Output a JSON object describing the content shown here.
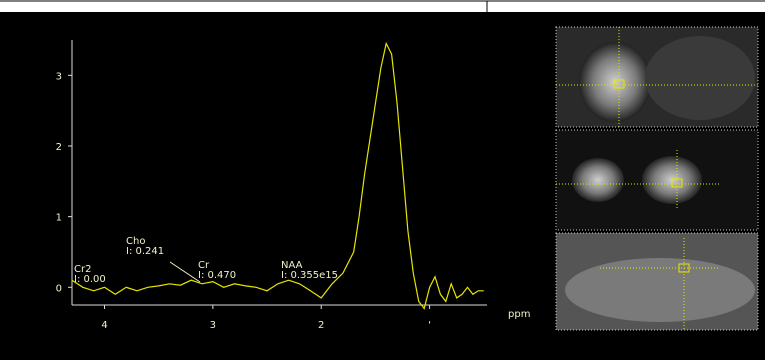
{
  "chart_data": {
    "type": "line",
    "x_label": "ppm",
    "xlim": [
      4.3,
      0.47
    ],
    "ylim": [
      -0.18,
      3.5
    ],
    "xticks": [
      4,
      3,
      2,
      {
        "value": 1,
        "label": "'"
      }
    ],
    "yticks": [
      0,
      1,
      2,
      3
    ],
    "color": "#e6e600",
    "x": [
      4.3,
      4.2,
      4.1,
      4.0,
      3.9,
      3.8,
      3.7,
      3.6,
      3.5,
      3.4,
      3.3,
      3.2,
      3.1,
      3.0,
      2.9,
      2.8,
      2.7,
      2.6,
      2.5,
      2.4,
      2.3,
      2.2,
      2.1,
      2.0,
      1.9,
      1.8,
      1.7,
      1.65,
      1.6,
      1.55,
      1.5,
      1.45,
      1.4,
      1.35,
      1.3,
      1.25,
      1.2,
      1.15,
      1.1,
      1.05,
      1.0,
      0.95,
      0.9,
      0.85,
      0.8,
      0.75,
      0.7,
      0.65,
      0.6,
      0.55,
      0.5
    ],
    "values": [
      0.1,
      0.0,
      -0.05,
      0.0,
      -0.1,
      0.0,
      -0.05,
      0.0,
      0.02,
      0.05,
      0.03,
      0.1,
      0.05,
      0.08,
      0.0,
      0.05,
      0.02,
      0.0,
      -0.05,
      0.05,
      0.1,
      0.05,
      -0.05,
      -0.15,
      0.05,
      0.2,
      0.5,
      1.0,
      1.6,
      2.1,
      2.6,
      3.1,
      3.45,
      3.3,
      2.6,
      1.7,
      0.8,
      0.2,
      -0.2,
      -0.3,
      0.0,
      0.15,
      -0.1,
      -0.2,
      0.05,
      -0.15,
      -0.1,
      0.0,
      -0.1,
      -0.05,
      -0.05
    ],
    "annotations": [
      [
        "Cr2",
        "I: 0.00"
      ],
      [
        "Cho",
        "I: 0.241"
      ],
      [
        "Cr",
        "I: 0.470"
      ],
      [
        "NAA",
        "I: 0.355e15"
      ]
    ]
  }
}
